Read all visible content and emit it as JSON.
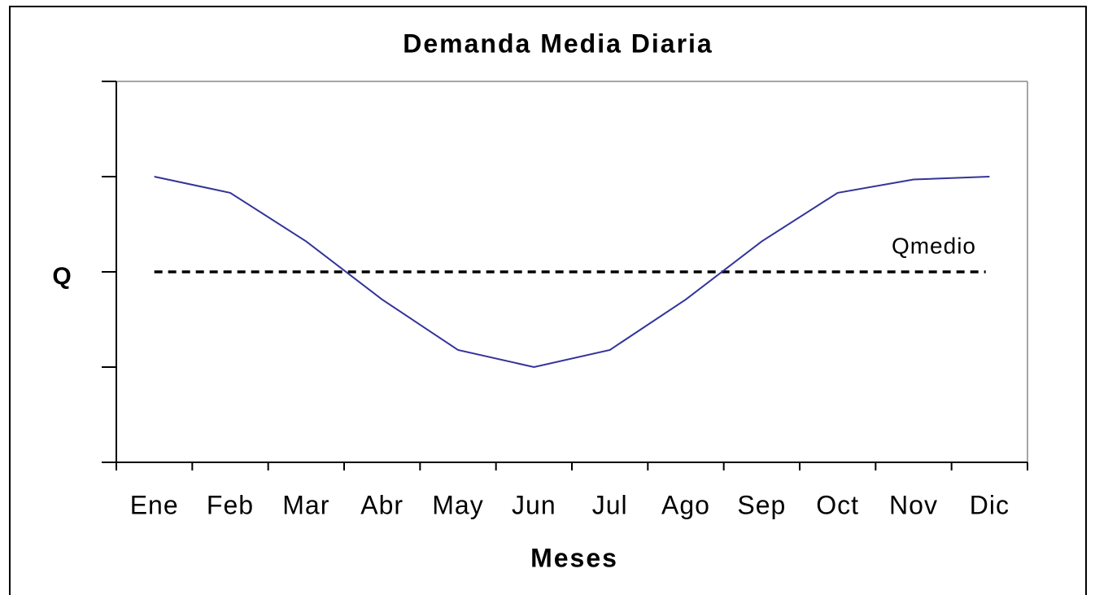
{
  "chart_data": {
    "type": "line",
    "title": "Demanda Media Diaria",
    "x_label": "Meses",
    "y_label": "Q",
    "categories": [
      "Ene",
      "Feb",
      "Mar",
      "Abr",
      "May",
      "Jun",
      "Jul",
      "Ago",
      "Sep",
      "Oct",
      "Nov",
      "Dic"
    ],
    "values": [
      3.0,
      2.83,
      2.32,
      1.71,
      1.18,
      1.0,
      1.18,
      1.71,
      2.32,
      2.83,
      2.97,
      3.0
    ],
    "color": "#33339a",
    "reference": {
      "label": "Qmedio",
      "value": 2,
      "color": "#000000"
    },
    "ylim": [
      0,
      4
    ],
    "yticks": [
      0,
      1,
      2,
      3,
      4
    ]
  }
}
